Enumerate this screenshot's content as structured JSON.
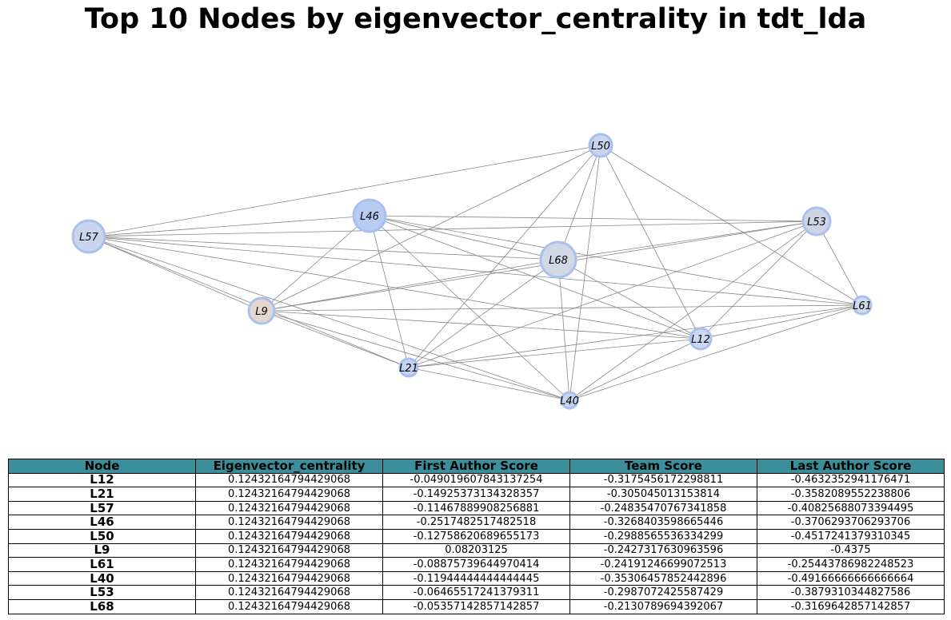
{
  "title": "Top 10 Nodes by eigenvector_centrality in tdt_lda",
  "graph": {
    "nodes": [
      {
        "id": "L50",
        "label": "L50",
        "color": "#c9d4ee"
      },
      {
        "id": "L46",
        "label": "L46",
        "color": "#b8cbf3"
      },
      {
        "id": "L53",
        "label": "L53",
        "color": "#cdd5e5"
      },
      {
        "id": "L57",
        "label": "L57",
        "color": "#c8d5ec"
      },
      {
        "id": "L68",
        "label": "L68",
        "color": "#d0d8e6"
      },
      {
        "id": "L9",
        "label": "L9",
        "color": "#e3d5cf"
      },
      {
        "id": "L61",
        "label": "L61",
        "color": "#cfdaee"
      },
      {
        "id": "L12",
        "label": "L12",
        "color": "#ccd8ee"
      },
      {
        "id": "L21",
        "label": "L21",
        "color": "#c5d3ef"
      },
      {
        "id": "L40",
        "label": "L40",
        "color": "#c5d3ef"
      }
    ],
    "edges": [
      [
        "L57",
        "L50"
      ],
      [
        "L57",
        "L46"
      ],
      [
        "L57",
        "L53"
      ],
      [
        "L57",
        "L9"
      ],
      [
        "L57",
        "L21"
      ],
      [
        "L57",
        "L40"
      ],
      [
        "L57",
        "L12"
      ],
      [
        "L57",
        "L68"
      ],
      [
        "L57",
        "L61"
      ],
      [
        "L46",
        "L53"
      ],
      [
        "L46",
        "L61"
      ],
      [
        "L46",
        "L12"
      ],
      [
        "L46",
        "L21"
      ],
      [
        "L46",
        "L40"
      ],
      [
        "L46",
        "L9"
      ],
      [
        "L46",
        "L68"
      ],
      [
        "L50",
        "L9"
      ],
      [
        "L50",
        "L21"
      ],
      [
        "L50",
        "L68"
      ],
      [
        "L50",
        "L40"
      ],
      [
        "L50",
        "L12"
      ],
      [
        "L50",
        "L61"
      ],
      [
        "L68",
        "L9"
      ],
      [
        "L68",
        "L21"
      ],
      [
        "L68",
        "L40"
      ],
      [
        "L68",
        "L12"
      ],
      [
        "L68",
        "L53"
      ],
      [
        "L9",
        "L53"
      ],
      [
        "L9",
        "L61"
      ],
      [
        "L9",
        "L12"
      ],
      [
        "L9",
        "L21"
      ],
      [
        "L9",
        "L40"
      ],
      [
        "L53",
        "L21"
      ],
      [
        "L53",
        "L40"
      ],
      [
        "L53",
        "L12"
      ],
      [
        "L53",
        "L61"
      ],
      [
        "L61",
        "L21"
      ],
      [
        "L61",
        "L40"
      ],
      [
        "L61",
        "L12"
      ],
      [
        "L12",
        "L21"
      ],
      [
        "L12",
        "L40"
      ],
      [
        "L21",
        "L40"
      ]
    ]
  },
  "table": {
    "columns": [
      "Node",
      "Eigenvector_centrality",
      "First Author Score",
      "Team Score",
      "Last Author Score"
    ],
    "header_color": "#3b8f9a",
    "rows": [
      [
        "L12",
        "0.12432164794429068",
        "-0.049019607843137254",
        "-0.3175456172298811",
        "-0.4632352941176471"
      ],
      [
        "L21",
        "0.12432164794429068",
        "-0.14925373134328357",
        "-0.305045013153814",
        "-0.3582089552238806"
      ],
      [
        "L57",
        "0.12432164794429068",
        "-0.11467889908256881",
        "-0.24835470767341858",
        "-0.40825688073394495"
      ],
      [
        "L46",
        "0.12432164794429068",
        "-0.2517482517482518",
        "-0.3268403598665446",
        "-0.3706293706293706"
      ],
      [
        "L50",
        "0.12432164794429068",
        "-0.12758620689655173",
        "-0.2988565536334299",
        "-0.4517241379310345"
      ],
      [
        "L9",
        "0.12432164794429068",
        "0.08203125",
        "-0.2427317630963596",
        "-0.4375"
      ],
      [
        "L61",
        "0.12432164794429068",
        "-0.08875739644970414",
        "-0.24191246699072513",
        "-0.25443786982248523"
      ],
      [
        "L40",
        "0.12432164794429068",
        "-0.11944444444444445",
        "-0.35306457852442896",
        "-0.49166666666666664"
      ],
      [
        "L53",
        "0.12432164794429068",
        "-0.06465517241379311",
        "-0.2987072425587429",
        "-0.3879310344827586"
      ],
      [
        "L68",
        "0.12432164794429068",
        "-0.05357142857142857",
        "-0.2130789694392067",
        "-0.3169642857142857"
      ]
    ]
  }
}
